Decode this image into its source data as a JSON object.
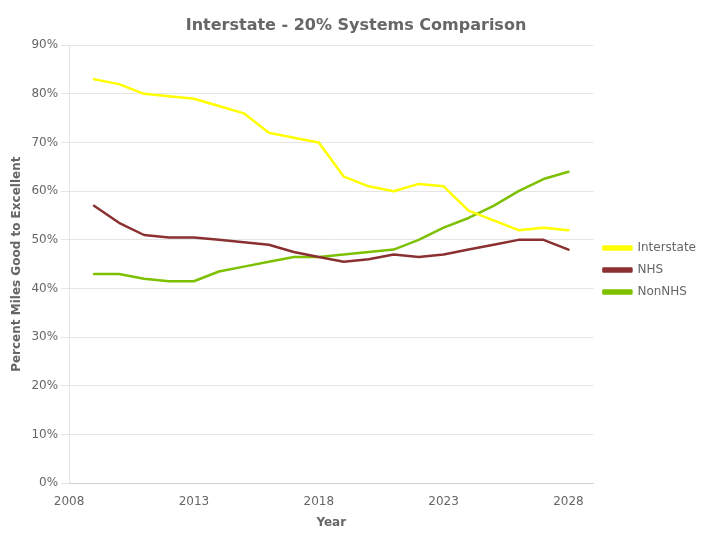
{
  "chart_data": {
    "type": "line",
    "title": "Interstate - 20% Systems Comparison",
    "xlabel": "Year",
    "ylabel": "Percent Miles Good to Excellent",
    "x": [
      2009,
      2010,
      2011,
      2012,
      2013,
      2014,
      2015,
      2016,
      2017,
      2018,
      2019,
      2020,
      2021,
      2022,
      2023,
      2024,
      2025,
      2026,
      2027,
      2028
    ],
    "series": [
      {
        "name": "Interstate",
        "color": "#ffff00",
        "values": [
          0.83,
          0.82,
          0.8,
          0.795,
          0.79,
          0.775,
          0.76,
          0.72,
          0.71,
          0.7,
          0.63,
          0.61,
          0.6,
          0.615,
          0.61,
          0.56,
          0.54,
          0.52,
          0.525,
          0.52
        ]
      },
      {
        "name": "NHS",
        "color": "#8b3030",
        "values": [
          0.57,
          0.535,
          0.51,
          0.505,
          0.505,
          0.5,
          0.495,
          0.49,
          0.475,
          0.465,
          0.455,
          0.46,
          0.47,
          0.465,
          0.47,
          0.48,
          0.49,
          0.5,
          0.5,
          0.48
        ]
      },
      {
        "name": "NonNHS",
        "color": "#7dc000",
        "values": [
          0.43,
          0.43,
          0.42,
          0.415,
          0.415,
          0.435,
          0.445,
          0.455,
          0.465,
          0.465,
          0.47,
          0.475,
          0.48,
          0.5,
          0.525,
          0.545,
          0.57,
          0.6,
          0.625,
          0.64
        ]
      }
    ],
    "xlim": [
      2008,
      2029
    ],
    "xticks": [
      2008,
      2013,
      2018,
      2023,
      2028
    ],
    "ylim": [
      0,
      0.9
    ],
    "yticks": [
      {
        "value": 0.0,
        "label": "0%"
      },
      {
        "value": 0.1,
        "label": "10%"
      },
      {
        "value": 0.2,
        "label": "20%"
      },
      {
        "value": 0.3,
        "label": "30%"
      },
      {
        "value": 0.4,
        "label": "40%"
      },
      {
        "value": 0.5,
        "label": "50%"
      },
      {
        "value": 0.6,
        "label": "60%"
      },
      {
        "value": 0.7,
        "label": "70%"
      },
      {
        "value": 0.8,
        "label": "80%"
      },
      {
        "value": 0.9,
        "label": "90%"
      }
    ],
    "grid": "y",
    "legend": "right"
  }
}
